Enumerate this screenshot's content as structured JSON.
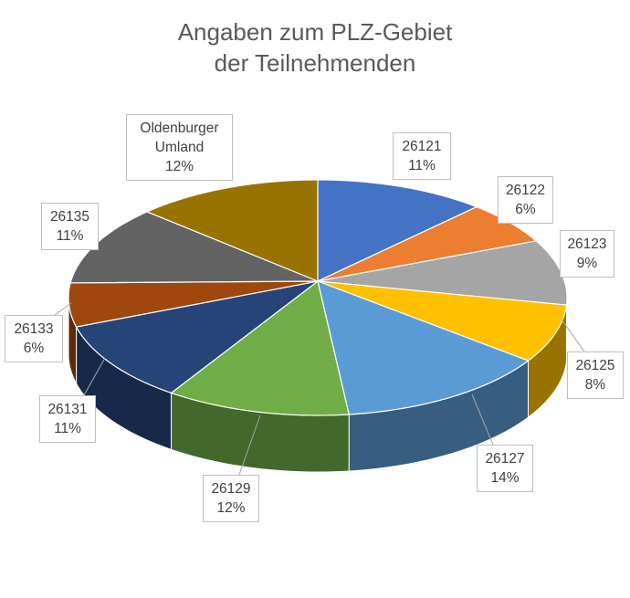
{
  "chart_data": {
    "type": "pie",
    "style": "3d",
    "title": [
      "Angaben zum PLZ-Gebiet",
      "der Teilnehmenden"
    ],
    "categories": [
      "26121",
      "26122",
      "26123",
      "26125",
      "26127",
      "26129",
      "26131",
      "26133",
      "26135",
      "Oldenburger Umland"
    ],
    "values": [
      11,
      6,
      9,
      8,
      14,
      12,
      11,
      6,
      11,
      12
    ],
    "labels": [
      "11%",
      "6%",
      "9%",
      "8%",
      "14%",
      "12%",
      "11%",
      "6%",
      "11%",
      "12%"
    ],
    "colors": [
      "#4472C4",
      "#ED7D31",
      "#A5A5A5",
      "#FFC000",
      "#5B9BD5",
      "#70AD47",
      "#264478",
      "#9E480E",
      "#636363",
      "#997300"
    ],
    "legend": "none",
    "start_angle": "top, clockwise"
  }
}
